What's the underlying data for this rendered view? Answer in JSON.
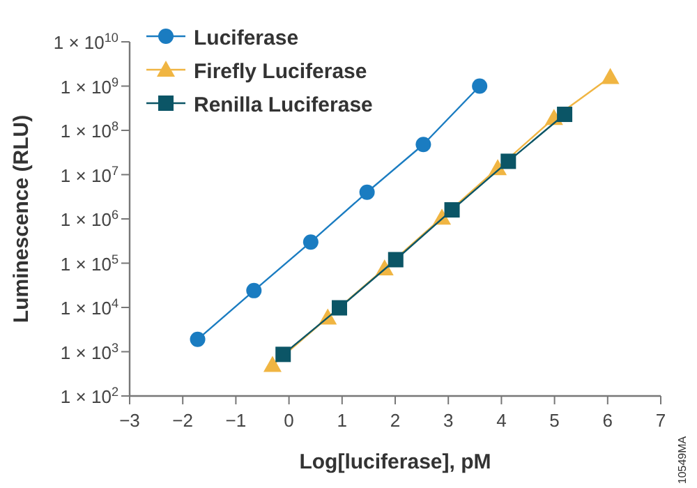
{
  "chart_data": {
    "type": "line",
    "xlabel": "Log[luciferase], pM",
    "ylabel": "Luminescence (RLU)",
    "log": "y",
    "xlim": [
      -3,
      7
    ],
    "xticks": [
      {
        "value": -3,
        "label": "−3"
      },
      {
        "value": -2,
        "label": "−2"
      },
      {
        "value": -1,
        "label": "−1"
      },
      0,
      1,
      2,
      3,
      4,
      5,
      6,
      7
    ],
    "ylim": [
      100,
      10000000000
    ],
    "yticks": [
      {
        "value": 100,
        "label": "1 × 10$^{2}$"
      },
      {
        "value": 1000,
        "label": "1 × 10$^{3}$"
      },
      {
        "value": 10000,
        "label": "1 × 10$^{4}$"
      },
      {
        "value": 100000,
        "label": "1 × 10$^{5}$"
      },
      {
        "value": 1000000,
        "label": "1 × 10$^{6}$"
      },
      {
        "value": 10000000,
        "label": "1 × 10$^{7}$"
      },
      {
        "value": 100000000,
        "label": "1 × 10$^{8}$"
      },
      {
        "value": 1000000000,
        "label": "1 × 10$^{9}$"
      },
      {
        "value": 10000000000,
        "label": "1 × 10$^{10}$"
      }
    ],
    "legend": "top left",
    "grid": false,
    "series": [
      {
        "name": "Luciferase",
        "color": "#1a7cc1",
        "marker": "circle",
        "x": [
          -1.72,
          -0.66,
          0.41,
          1.47,
          2.53,
          3.59
        ],
        "values": [
          1900,
          24000,
          300000,
          4000000,
          48000000,
          1000000000
        ]
      },
      {
        "name": "Firefly Luciferase",
        "color": "#f0b542",
        "marker": "triangle",
        "x": [
          -0.31,
          0.73,
          1.8,
          2.88,
          3.93,
          4.99,
          6.05
        ],
        "values": [
          500,
          5900,
          76000,
          1070000,
          14000000,
          190000000,
          1600000000
        ]
      },
      {
        "name": "Renilla Luciferase",
        "color": "#0b5566",
        "marker": "square",
        "x": [
          -0.11,
          0.95,
          2.01,
          3.07,
          4.13,
          5.19
        ],
        "values": [
          870,
          9800,
          120000,
          1600000,
          20000000,
          230000000
        ]
      }
    ],
    "annotations": [
      "10549MA"
    ]
  }
}
